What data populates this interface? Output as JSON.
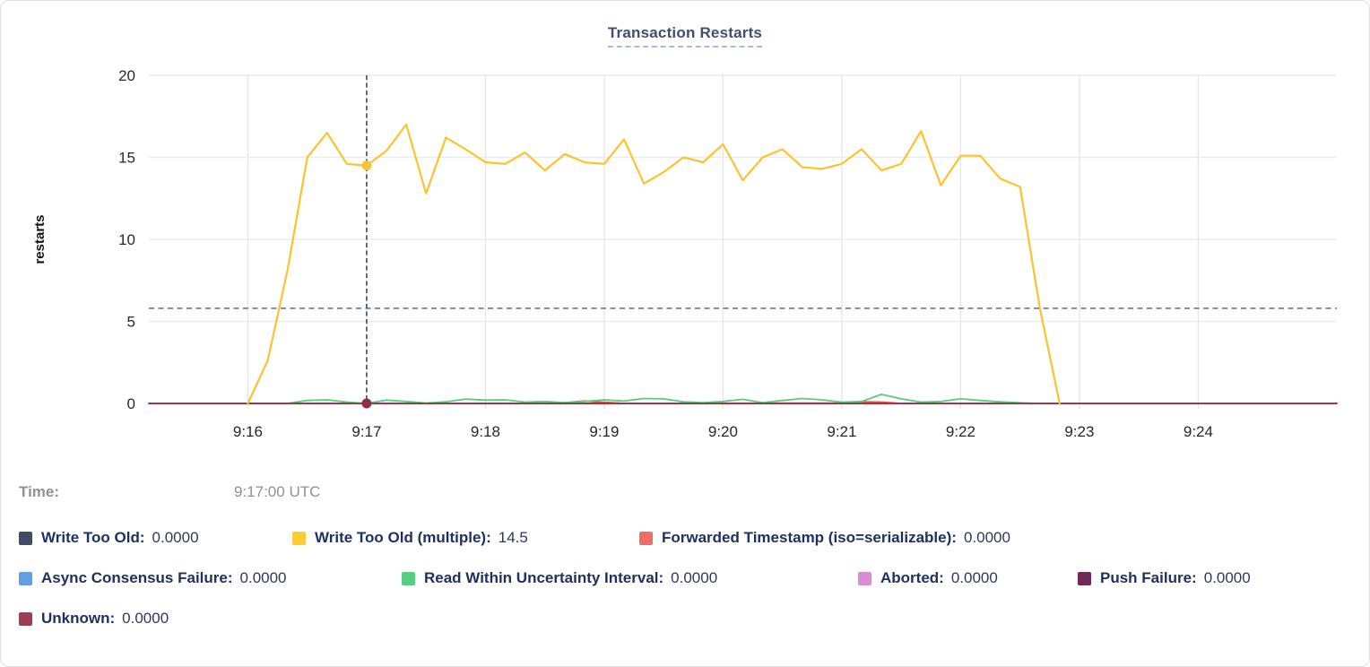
{
  "title": "Transaction Restarts",
  "time_row": {
    "label": "Time:",
    "value": "9:17:00 UTC"
  },
  "legend": {
    "items": [
      {
        "label": "Write Too Old:",
        "value": "0.0000",
        "color": "#3e4c68"
      },
      {
        "label": "Write Too Old (multiple):",
        "value": "14.5",
        "color": "#ffcd33"
      },
      {
        "label": "Forwarded Timestamp (iso=serializable):",
        "value": "0.0000",
        "color": "#ee6f66"
      },
      {
        "label": "Async Consensus Failure:",
        "value": "0.0000",
        "color": "#5f9fe6"
      },
      {
        "label": "Read Within Uncertainty Interval:",
        "value": "0.0000",
        "color": "#57cc82"
      },
      {
        "label": "Aborted:",
        "value": "0.0000",
        "color": "#db8cd7"
      },
      {
        "label": "Push Failure:",
        "value": "0.0000",
        "color": "#6f2a57"
      },
      {
        "label": "Unknown:",
        "value": "0.0000",
        "color": "#a23c55"
      }
    ]
  },
  "chart_data": {
    "type": "line",
    "title": "Transaction Restarts",
    "xlabel": "",
    "ylabel": "restarts",
    "ylim": [
      0,
      20
    ],
    "y_ticks": [
      0,
      5,
      10,
      15,
      20
    ],
    "x_ticks": [
      "9:16",
      "9:17",
      "9:18",
      "9:19",
      "9:20",
      "9:21",
      "9:22",
      "9:23",
      "9:24"
    ],
    "x_range": [
      "9:15:10",
      "9:25:10"
    ],
    "grid": true,
    "legend_position": "bottom",
    "cursor": {
      "time": "9:17:00",
      "crosshair_value": 5.8,
      "highlighted_series": "Write Too Old (multiple)",
      "highlighted_value": 14.5,
      "zero_dot_series": "Unknown",
      "vline_color": "#3a5a6e",
      "hline_color": "#62889d",
      "zero_dot_color": "#8e2f44"
    },
    "series": [
      {
        "name": "Write Too Old",
        "color": "#3e4c68",
        "width": 1.4,
        "points": [
          [
            "9:15:10",
            0
          ],
          [
            "9:25:10",
            0
          ]
        ]
      },
      {
        "name": "Async Consensus Failure",
        "color": "#5f9fe6",
        "width": 1.4,
        "points": [
          [
            "9:15:10",
            0
          ],
          [
            "9:25:10",
            0
          ]
        ]
      },
      {
        "name": "Aborted",
        "color": "#db8cd7",
        "width": 1.4,
        "points": [
          [
            "9:15:10",
            0
          ],
          [
            "9:25:10",
            0
          ]
        ]
      },
      {
        "name": "Push Failure",
        "color": "#6f2a57",
        "width": 1.4,
        "points": [
          [
            "9:15:10",
            0
          ],
          [
            "9:25:10",
            0
          ]
        ]
      },
      {
        "name": "Forwarded Timestamp (iso=serializable)",
        "color": "#e4564e",
        "width": 1.8,
        "points": [
          [
            "9:15:10",
            0
          ],
          [
            "9:18:30",
            0
          ],
          [
            "9:18:40",
            0.05
          ],
          [
            "9:18:50",
            0.15
          ],
          [
            "9:19:00",
            0.07
          ],
          [
            "9:19:10",
            0
          ],
          [
            "9:21:00",
            0.02
          ],
          [
            "9:21:10",
            0.1
          ],
          [
            "9:21:20",
            0.08
          ],
          [
            "9:21:30",
            0
          ],
          [
            "9:25:10",
            0
          ]
        ]
      },
      {
        "name": "Read Within Uncertainty Interval",
        "color": "#57cc82",
        "width": 1.8,
        "points": [
          [
            "9:16:20",
            0
          ],
          [
            "9:16:30",
            0.18
          ],
          [
            "9:16:40",
            0.22
          ],
          [
            "9:16:50",
            0.08
          ],
          [
            "9:17:00",
            0
          ],
          [
            "9:17:10",
            0.2
          ],
          [
            "9:17:20",
            0.12
          ],
          [
            "9:17:30",
            0.02
          ],
          [
            "9:17:40",
            0.1
          ],
          [
            "9:17:50",
            0.26
          ],
          [
            "9:18:00",
            0.2
          ],
          [
            "9:18:10",
            0.22
          ],
          [
            "9:18:20",
            0.08
          ],
          [
            "9:18:30",
            0.12
          ],
          [
            "9:18:40",
            0.05
          ],
          [
            "9:18:50",
            0.12
          ],
          [
            "9:19:00",
            0.22
          ],
          [
            "9:19:10",
            0.15
          ],
          [
            "9:19:20",
            0.3
          ],
          [
            "9:19:30",
            0.28
          ],
          [
            "9:19:40",
            0.1
          ],
          [
            "9:19:50",
            0.05
          ],
          [
            "9:20:00",
            0.12
          ],
          [
            "9:20:10",
            0.25
          ],
          [
            "9:20:20",
            0.05
          ],
          [
            "9:20:30",
            0.18
          ],
          [
            "9:20:40",
            0.3
          ],
          [
            "9:20:50",
            0.22
          ],
          [
            "9:21:00",
            0.08
          ],
          [
            "9:21:10",
            0.12
          ],
          [
            "9:21:20",
            0.55
          ],
          [
            "9:21:30",
            0.28
          ],
          [
            "9:21:40",
            0.08
          ],
          [
            "9:21:50",
            0.12
          ],
          [
            "9:22:00",
            0.28
          ],
          [
            "9:22:10",
            0.18
          ],
          [
            "9:22:20",
            0.1
          ],
          [
            "9:22:30",
            0.04
          ],
          [
            "9:22:40",
            0
          ]
        ]
      },
      {
        "name": "Unknown",
        "color": "#9b3049",
        "width": 1.8,
        "points": [
          [
            "9:15:10",
            0
          ],
          [
            "9:25:10",
            0
          ]
        ]
      },
      {
        "name": "Write Too Old (multiple)",
        "color": "#fcc32e",
        "width": 2.2,
        "points": [
          [
            "9:16:00",
            0
          ],
          [
            "9:16:10",
            2.6
          ],
          [
            "9:16:20",
            8.1
          ],
          [
            "9:16:30",
            15.0
          ],
          [
            "9:16:40",
            16.5
          ],
          [
            "9:16:50",
            14.6
          ],
          [
            "9:17:00",
            14.5
          ],
          [
            "9:17:10",
            15.4
          ],
          [
            "9:17:20",
            17.0
          ],
          [
            "9:17:30",
            12.8
          ],
          [
            "9:17:40",
            16.2
          ],
          [
            "9:17:50",
            15.5
          ],
          [
            "9:18:00",
            14.7
          ],
          [
            "9:18:10",
            14.6
          ],
          [
            "9:18:20",
            15.3
          ],
          [
            "9:18:30",
            14.2
          ],
          [
            "9:18:40",
            15.2
          ],
          [
            "9:18:50",
            14.7
          ],
          [
            "9:19:00",
            14.6
          ],
          [
            "9:19:10",
            16.1
          ],
          [
            "9:19:20",
            13.4
          ],
          [
            "9:19:30",
            14.1
          ],
          [
            "9:19:40",
            15.0
          ],
          [
            "9:19:50",
            14.7
          ],
          [
            "9:20:00",
            15.8
          ],
          [
            "9:20:10",
            13.6
          ],
          [
            "9:20:20",
            15.0
          ],
          [
            "9:20:30",
            15.5
          ],
          [
            "9:20:40",
            14.4
          ],
          [
            "9:20:50",
            14.3
          ],
          [
            "9:21:00",
            14.6
          ],
          [
            "9:21:10",
            15.5
          ],
          [
            "9:21:20",
            14.2
          ],
          [
            "9:21:30",
            14.6
          ],
          [
            "9:21:40",
            16.6
          ],
          [
            "9:21:50",
            13.3
          ],
          [
            "9:22:00",
            15.1
          ],
          [
            "9:22:10",
            15.1
          ],
          [
            "9:22:20",
            13.7
          ],
          [
            "9:22:30",
            13.2
          ],
          [
            "9:22:40",
            5.8
          ],
          [
            "9:22:50",
            0
          ]
        ]
      }
    ]
  }
}
